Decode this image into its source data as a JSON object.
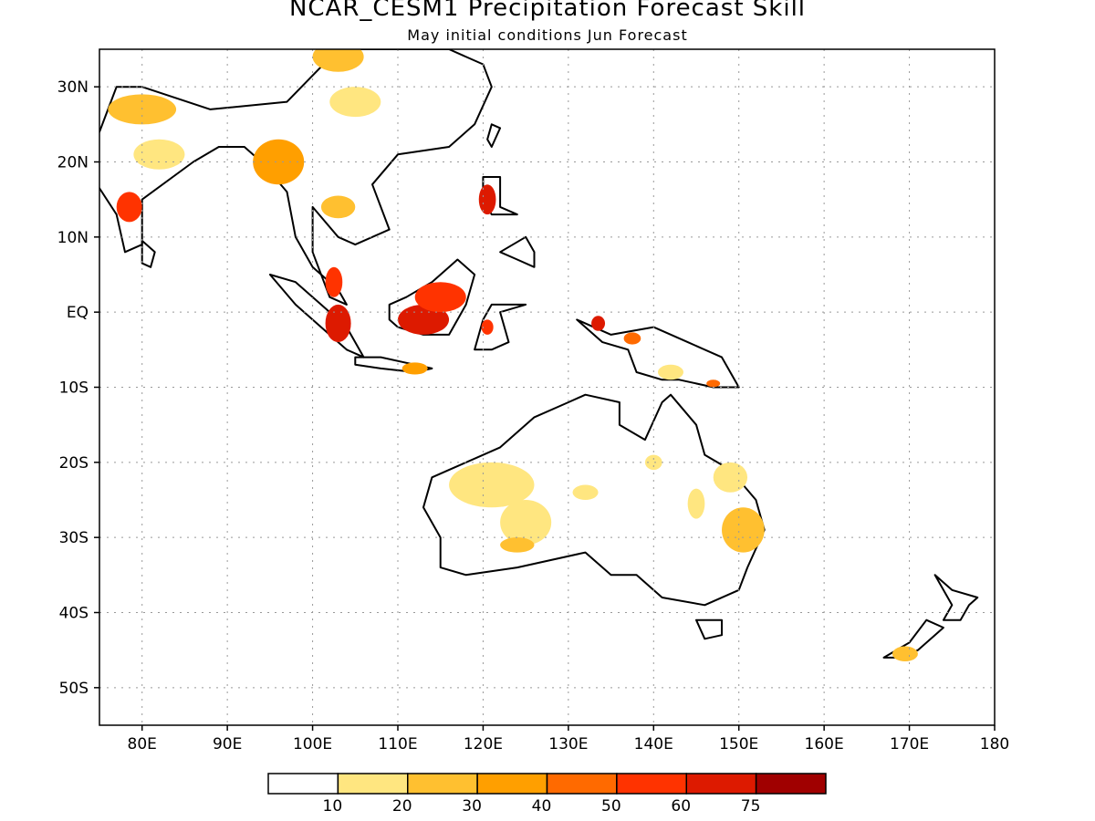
{
  "title": "NCAR_CESM1 Precipitation Forecast Skill",
  "subtitle": "May initial conditions  Jun Forecast",
  "map": {
    "lon_range": [
      75,
      180
    ],
    "lat_range": [
      -55,
      35
    ],
    "lat_ticks": [
      {
        "lat": 30,
        "label": "30N"
      },
      {
        "lat": 20,
        "label": "20N"
      },
      {
        "lat": 10,
        "label": "10N"
      },
      {
        "lat": 0,
        "label": "EQ"
      },
      {
        "lat": -10,
        "label": "10S"
      },
      {
        "lat": -20,
        "label": "20S"
      },
      {
        "lat": -30,
        "label": "30S"
      },
      {
        "lat": -40,
        "label": "40S"
      },
      {
        "lat": -50,
        "label": "50S"
      }
    ],
    "lon_ticks": [
      {
        "lon": 80,
        "label": "80E"
      },
      {
        "lon": 90,
        "label": "90E"
      },
      {
        "lon": 100,
        "label": "100E"
      },
      {
        "lon": 110,
        "label": "110E"
      },
      {
        "lon": 120,
        "label": "120E"
      },
      {
        "lon": 130,
        "label": "130E"
      },
      {
        "lon": 140,
        "label": "140E"
      },
      {
        "lon": 150,
        "label": "150E"
      },
      {
        "lon": 160,
        "label": "160E"
      },
      {
        "lon": 170,
        "label": "170E"
      },
      {
        "lon": 180,
        "label": "180"
      }
    ],
    "grid": "dotted"
  },
  "colorbar": {
    "colors": [
      "#ffffff",
      "#ffe680",
      "#ffc030",
      "#ff9f00",
      "#ff6a00",
      "#ff3300",
      "#dd1a00",
      "#a00000"
    ],
    "labels": [
      "10",
      "20",
      "30",
      "40",
      "50",
      "60",
      "75"
    ]
  },
  "skill_patches": [
    {
      "lon": 80,
      "lat": 27,
      "level": 2,
      "rlon": 4,
      "rlat": 2
    },
    {
      "lon": 82,
      "lat": 21,
      "level": 1,
      "rlon": 3,
      "rlat": 2
    },
    {
      "lon": 78.5,
      "lat": 14,
      "level": 5,
      "rlon": 1.5,
      "rlat": 2
    },
    {
      "lon": 96,
      "lat": 20,
      "level": 5,
      "rlon": 1.5,
      "rlat": 2
    },
    {
      "lon": 96,
      "lat": 20,
      "level": 3,
      "rlon": 3,
      "rlat": 3
    },
    {
      "lon": 103,
      "lat": 34,
      "level": 2,
      "rlon": 3,
      "rlat": 2
    },
    {
      "lon": 105,
      "lat": 28,
      "level": 1,
      "rlon": 3,
      "rlat": 2
    },
    {
      "lon": 103,
      "lat": 14,
      "level": 2,
      "rlon": 2,
      "rlat": 1.5
    },
    {
      "lon": 102.5,
      "lat": 4,
      "level": 5,
      "rlon": 1,
      "rlat": 2
    },
    {
      "lon": 103,
      "lat": -1.5,
      "level": 6,
      "rlon": 1.5,
      "rlat": 2.5
    },
    {
      "lon": 113,
      "lat": -1,
      "level": 6,
      "rlon": 3,
      "rlat": 2
    },
    {
      "lon": 115,
      "lat": 2,
      "level": 5,
      "rlon": 3,
      "rlat": 2
    },
    {
      "lon": 112,
      "lat": -7.5,
      "level": 3,
      "rlon": 1.5,
      "rlat": 0.8
    },
    {
      "lon": 120.5,
      "lat": -2,
      "level": 5,
      "rlon": 0.7,
      "rlat": 1
    },
    {
      "lon": 120.5,
      "lat": 15,
      "level": 6,
      "rlon": 1,
      "rlat": 2
    },
    {
      "lon": 133.5,
      "lat": -1.5,
      "level": 6,
      "rlon": 0.8,
      "rlat": 1
    },
    {
      "lon": 137.5,
      "lat": -3.5,
      "level": 4,
      "rlon": 1,
      "rlat": 0.8
    },
    {
      "lon": 142,
      "lat": -8,
      "level": 1,
      "rlon": 1.5,
      "rlat": 1
    },
    {
      "lon": 147,
      "lat": -9.5,
      "level": 4,
      "rlon": 0.8,
      "rlat": 0.5
    },
    {
      "lon": 121,
      "lat": -23,
      "level": 1,
      "rlon": 5,
      "rlat": 3
    },
    {
      "lon": 125,
      "lat": -28,
      "level": 1,
      "rlon": 3,
      "rlat": 3
    },
    {
      "lon": 124,
      "lat": -31,
      "level": 2,
      "rlon": 2,
      "rlat": 1
    },
    {
      "lon": 132,
      "lat": -24,
      "level": 1,
      "rlon": 1.5,
      "rlat": 1
    },
    {
      "lon": 140,
      "lat": -20,
      "level": 1,
      "rlon": 1,
      "rlat": 1
    },
    {
      "lon": 149,
      "lat": -22,
      "level": 1,
      "rlon": 2,
      "rlat": 2
    },
    {
      "lon": 150.5,
      "lat": -29,
      "level": 2,
      "rlon": 2.5,
      "rlat": 3
    },
    {
      "lon": 145,
      "lat": -25.5,
      "level": 1,
      "rlon": 1,
      "rlat": 2
    },
    {
      "lon": 169.5,
      "lat": -45.5,
      "level": 2,
      "rlon": 1.5,
      "rlat": 1
    }
  ],
  "landmasses": [
    {
      "name": "asia",
      "pts": [
        [
          75,
          24
        ],
        [
          77,
          30
        ],
        [
          80,
          30
        ],
        [
          88,
          27
        ],
        [
          97,
          28
        ],
        [
          103,
          35
        ],
        [
          116,
          35
        ],
        [
          120,
          33
        ],
        [
          121,
          30
        ],
        [
          119,
          25
        ],
        [
          116,
          22
        ],
        [
          110,
          21
        ],
        [
          107,
          17
        ],
        [
          109,
          11
        ],
        [
          105,
          9
        ],
        [
          103,
          10
        ],
        [
          100,
          14
        ],
        [
          100,
          8
        ],
        [
          102,
          2
        ],
        [
          104,
          1
        ],
        [
          103,
          3
        ],
        [
          100,
          6
        ],
        [
          98,
          10
        ],
        [
          97,
          16
        ],
        [
          94,
          20
        ],
        [
          92,
          22
        ],
        [
          89,
          22
        ],
        [
          86,
          20
        ],
        [
          80,
          15
        ],
        [
          80,
          9
        ],
        [
          78,
          8
        ],
        [
          77,
          13
        ],
        [
          73,
          20
        ],
        [
          72,
          24
        ]
      ]
    },
    {
      "name": "sumatra",
      "pts": [
        [
          95,
          5
        ],
        [
          98,
          4
        ],
        [
          101,
          1
        ],
        [
          104,
          -2
        ],
        [
          106,
          -6
        ],
        [
          104,
          -5
        ],
        [
          101,
          -2
        ],
        [
          98,
          1
        ]
      ]
    },
    {
      "name": "java",
      "pts": [
        [
          105,
          -6
        ],
        [
          108,
          -6
        ],
        [
          112,
          -7
        ],
        [
          114,
          -7.5
        ],
        [
          112,
          -8
        ],
        [
          108,
          -7.5
        ],
        [
          105,
          -7
        ]
      ]
    },
    {
      "name": "borneo",
      "pts": [
        [
          109,
          1
        ],
        [
          111,
          2
        ],
        [
          114,
          4
        ],
        [
          116,
          6
        ],
        [
          117,
          7
        ],
        [
          119,
          5
        ],
        [
          118,
          1
        ],
        [
          116,
          -3
        ],
        [
          113,
          -3
        ],
        [
          110,
          -2
        ],
        [
          109,
          -1
        ]
      ]
    },
    {
      "name": "sulawesi",
      "pts": [
        [
          119,
          -5
        ],
        [
          120,
          -1
        ],
        [
          121,
          1
        ],
        [
          125,
          1
        ],
        [
          122,
          0
        ],
        [
          123,
          -4
        ],
        [
          121,
          -5
        ]
      ]
    },
    {
      "name": "luzon",
      "pts": [
        [
          120,
          18
        ],
        [
          122,
          18
        ],
        [
          122,
          14
        ],
        [
          124,
          13
        ],
        [
          121,
          13
        ],
        [
          120,
          15
        ]
      ]
    },
    {
      "name": "mindanao",
      "pts": [
        [
          122,
          8
        ],
        [
          125,
          10
        ],
        [
          126,
          8
        ],
        [
          126,
          6
        ],
        [
          124,
          7
        ]
      ]
    },
    {
      "name": "new-guinea",
      "pts": [
        [
          131,
          -1
        ],
        [
          135,
          -3
        ],
        [
          140,
          -2
        ],
        [
          144,
          -4
        ],
        [
          148,
          -6
        ],
        [
          150,
          -10
        ],
        [
          147,
          -10
        ],
        [
          143,
          -9
        ],
        [
          141,
          -9
        ],
        [
          138,
          -8
        ],
        [
          137,
          -5
        ],
        [
          134,
          -4
        ],
        [
          132,
          -2
        ]
      ]
    },
    {
      "name": "australia",
      "pts": [
        [
          114,
          -22
        ],
        [
          116,
          -21
        ],
        [
          122,
          -18
        ],
        [
          126,
          -14
        ],
        [
          130,
          -12
        ],
        [
          132,
          -11
        ],
        [
          136,
          -12
        ],
        [
          136,
          -15
        ],
        [
          139,
          -17
        ],
        [
          141,
          -12
        ],
        [
          142,
          -11
        ],
        [
          145,
          -15
        ],
        [
          146,
          -19
        ],
        [
          149,
          -21
        ],
        [
          152,
          -25
        ],
        [
          153,
          -29
        ],
        [
          151,
          -34
        ],
        [
          150,
          -37
        ],
        [
          146,
          -39
        ],
        [
          141,
          -38
        ],
        [
          138,
          -35
        ],
        [
          135,
          -35
        ],
        [
          132,
          -32
        ],
        [
          124,
          -34
        ],
        [
          118,
          -35
        ],
        [
          115,
          -34
        ],
        [
          115,
          -30
        ],
        [
          113,
          -26
        ]
      ]
    },
    {
      "name": "tasmania",
      "pts": [
        [
          145,
          -41
        ],
        [
          148,
          -41
        ],
        [
          148,
          -43
        ],
        [
          146,
          -43.5
        ]
      ]
    },
    {
      "name": "nz-north",
      "pts": [
        [
          173,
          -35
        ],
        [
          175,
          -37
        ],
        [
          178,
          -38
        ],
        [
          177,
          -39
        ],
        [
          176,
          -41
        ],
        [
          174,
          -41
        ],
        [
          175,
          -39
        ]
      ]
    },
    {
      "name": "nz-south",
      "pts": [
        [
          172,
          -41
        ],
        [
          174,
          -42
        ],
        [
          173,
          -43
        ],
        [
          171,
          -45
        ],
        [
          169,
          -46
        ],
        [
          167,
          -46
        ],
        [
          170,
          -44
        ]
      ]
    },
    {
      "name": "sri-lanka",
      "pts": [
        [
          80,
          9.5
        ],
        [
          81.5,
          8
        ],
        [
          81,
          6
        ],
        [
          80,
          6.5
        ]
      ]
    },
    {
      "name": "taiwan",
      "pts": [
        [
          121,
          25
        ],
        [
          122,
          24.5
        ],
        [
          121,
          22
        ],
        [
          120.5,
          23
        ]
      ]
    }
  ]
}
